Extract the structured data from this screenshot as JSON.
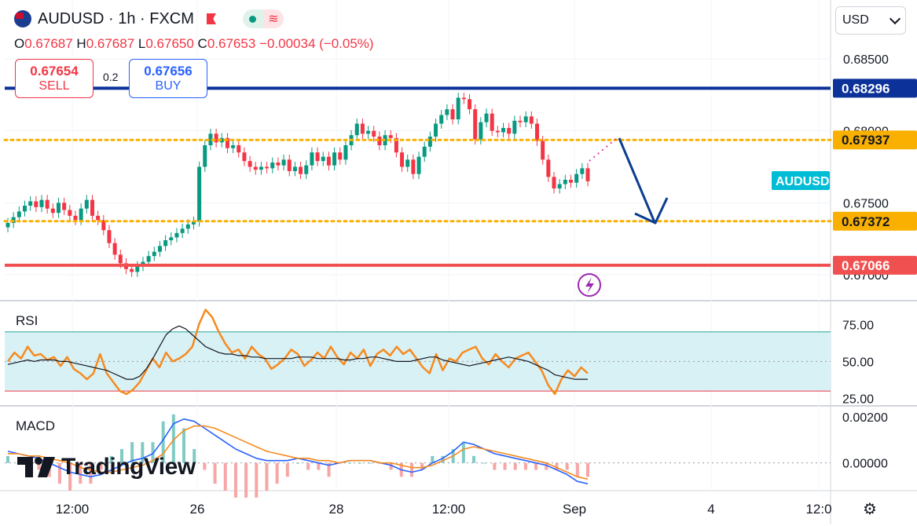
{
  "header": {
    "symbol": "AUDUSD · 1h · FXCM",
    "ohlc": {
      "o_label": "O",
      "o": "0.67687",
      "h_label": "H",
      "h": "0.67687",
      "l_label": "L",
      "l": "0.67650",
      "c_label": "C",
      "c": "0.67653",
      "change": "−0.00034 (−0.05%)"
    },
    "sell": {
      "price": "0.67654",
      "label": "SELL"
    },
    "buy": {
      "price": "0.67656",
      "label": "BUY"
    },
    "spread": "0.2",
    "currency_button": "USD"
  },
  "colors": {
    "up": "#089981",
    "down": "#f23645",
    "blue_line": "#0c3299",
    "yellow": "#f9b000",
    "red_line": "#f0504f",
    "rsi": "#f68a1f",
    "signal": "#131722",
    "macd": "#2962ff",
    "arrow": "#0c3d91",
    "accent": "#00bcd4"
  },
  "chart_data": [
    {
      "type": "candlestick",
      "title": "AUDUSD · 1h · FXCM",
      "x_ticks": [
        "12:00",
        "26",
        "28",
        "12:00",
        "Sep",
        "4",
        "12:0"
      ],
      "y_ticks": [
        "0.68500",
        "0.68000",
        "0.67500",
        "0.67000"
      ],
      "ylim": [
        0.6695,
        0.6865
      ],
      "levels": [
        {
          "value": 0.68296,
          "label": "0.68296",
          "style": "solid",
          "color": "#0c3299"
        },
        {
          "value": 0.67937,
          "label": "0.67937",
          "style": "dotted",
          "color": "#f9b000"
        },
        {
          "value": 0.67372,
          "label": "0.67372",
          "style": "dotted",
          "color": "#f9b000"
        },
        {
          "value": 0.67066,
          "label": "0.67066",
          "style": "solid",
          "color": "#f0504f"
        }
      ],
      "last_price_tag": "AUDUSD",
      "close": [
        0.6736,
        0.674,
        0.6744,
        0.6748,
        0.6751,
        0.6747,
        0.6752,
        0.6746,
        0.6743,
        0.675,
        0.6745,
        0.6741,
        0.6738,
        0.6746,
        0.6752,
        0.6741,
        0.6738,
        0.6731,
        0.6722,
        0.6714,
        0.6708,
        0.6704,
        0.6702,
        0.6706,
        0.6709,
        0.6713,
        0.6716,
        0.672,
        0.6724,
        0.6726,
        0.6729,
        0.6732,
        0.6735,
        0.6737,
        0.6775,
        0.679,
        0.6798,
        0.6792,
        0.6795,
        0.6788,
        0.679,
        0.6785,
        0.6779,
        0.6775,
        0.6773,
        0.6775,
        0.6774,
        0.6778,
        0.6776,
        0.678,
        0.6772,
        0.6775,
        0.677,
        0.6776,
        0.6785,
        0.6779,
        0.6782,
        0.6776,
        0.6785,
        0.678,
        0.679,
        0.6797,
        0.6805,
        0.6798,
        0.68,
        0.6796,
        0.679,
        0.6797,
        0.6795,
        0.6785,
        0.6775,
        0.678,
        0.677,
        0.6782,
        0.6789,
        0.6796,
        0.6805,
        0.6811,
        0.6815,
        0.6808,
        0.6823,
        0.6822,
        0.6815,
        0.6794,
        0.6806,
        0.6812,
        0.68,
        0.6799,
        0.6802,
        0.6798,
        0.6807,
        0.6806,
        0.681,
        0.6805,
        0.6793,
        0.678,
        0.6768,
        0.676,
        0.6763,
        0.6766,
        0.6764,
        0.677,
        0.6774,
        0.6765
      ]
    },
    {
      "type": "line",
      "title": "RSI",
      "y_ticks": [
        "75.00",
        "50.00",
        "25.00"
      ],
      "ylim": [
        20,
        90
      ],
      "band": [
        30,
        70
      ],
      "series": [
        {
          "values": [
            50,
            56,
            52,
            60,
            54,
            55,
            51,
            53,
            47,
            53,
            45,
            42,
            38,
            42,
            55,
            42,
            36,
            30,
            28,
            31,
            36,
            44,
            52,
            46,
            56,
            50,
            52,
            55,
            60,
            75,
            85,
            80,
            70,
            62,
            56,
            58,
            52,
            60,
            55,
            52,
            45,
            48,
            52,
            58,
            55,
            47,
            51,
            56,
            52,
            60,
            53,
            48,
            56,
            52,
            58,
            47,
            55,
            58,
            54,
            60,
            55,
            58,
            52,
            46,
            42,
            55,
            44,
            52,
            50,
            56,
            58,
            60,
            52,
            48,
            55,
            50,
            46,
            52,
            54,
            56,
            50,
            44,
            34,
            28,
            38,
            44,
            40,
            46,
            42
          ]
        },
        {
          "values": [
            48,
            49,
            50,
            51,
            50,
            51,
            51,
            51,
            50,
            50,
            49,
            48,
            47,
            46,
            45,
            44,
            42,
            40,
            38,
            38,
            40,
            45,
            52,
            60,
            68,
            72,
            74,
            72,
            68,
            64,
            60,
            58,
            56,
            55,
            55,
            54,
            54,
            53,
            53,
            52,
            52,
            52,
            52,
            52,
            53,
            53,
            53,
            52,
            52,
            52,
            52,
            51,
            51,
            52,
            52,
            53,
            53,
            52,
            51,
            50,
            50,
            50,
            51,
            52,
            53,
            53,
            51,
            50,
            49,
            48,
            47,
            48,
            49,
            50,
            51,
            52,
            53,
            52,
            51,
            50,
            48,
            46,
            44,
            41,
            40,
            39,
            38,
            38,
            38
          ]
        }
      ]
    },
    {
      "type": "line",
      "title": "MACD",
      "y_ticks": [
        "0.00200",
        "0.00000"
      ],
      "ylim": [
        -0.0012,
        0.0024
      ],
      "series": [
        {
          "values": [
            0.0005,
            0.0004,
            0.0003,
            0.0002,
            0.0,
            -0.0002,
            -0.0004,
            -0.0005,
            -0.0006,
            -0.0005,
            -0.0003,
            -0.0001,
            0.0001,
            0.0002,
            0.0004,
            0.001,
            0.0017,
            0.0019,
            0.0018,
            0.0015,
            0.0012,
            0.0009,
            0.0006,
            0.0004,
            0.0002,
            0.0001,
            0.0001,
            0.0001,
            0.0002,
            0.0001,
            0.0,
            -0.0001,
            0.0,
            0.0001,
            0.0001,
            0.0001,
            0.0,
            -0.0001,
            -0.0003,
            -0.0004,
            -0.0003,
            0.0,
            0.0002,
            0.0005,
            0.0009,
            0.0008,
            0.0006,
            0.0004,
            0.0003,
            0.0002,
            0.0001,
            0.0,
            -0.0001,
            -0.0003,
            -0.0005,
            -0.0008,
            -0.0009
          ]
        },
        {
          "values": [
            0.0004,
            0.0004,
            0.0003,
            0.0003,
            0.0002,
            0.0001,
            0.0,
            -0.0002,
            -0.0003,
            -0.0004,
            -0.0004,
            -0.0003,
            -0.0002,
            -0.0001,
            0.0001,
            0.0004,
            0.001,
            0.0014,
            0.0016,
            0.0016,
            0.0015,
            0.0013,
            0.0011,
            0.0009,
            0.0007,
            0.0005,
            0.0004,
            0.0003,
            0.0002,
            0.0002,
            0.0001,
            0.0001,
            0.0,
            0.0001,
            0.0001,
            0.0001,
            0.0,
            0.0,
            -0.0001,
            -0.0002,
            -0.0002,
            -0.0001,
            0.0001,
            0.0003,
            0.0006,
            0.0007,
            0.0006,
            0.0005,
            0.0004,
            0.0003,
            0.0002,
            0.0001,
            0.0,
            -0.0002,
            -0.0004,
            -0.0006,
            -0.0007
          ]
        }
      ]
    }
  ]
}
